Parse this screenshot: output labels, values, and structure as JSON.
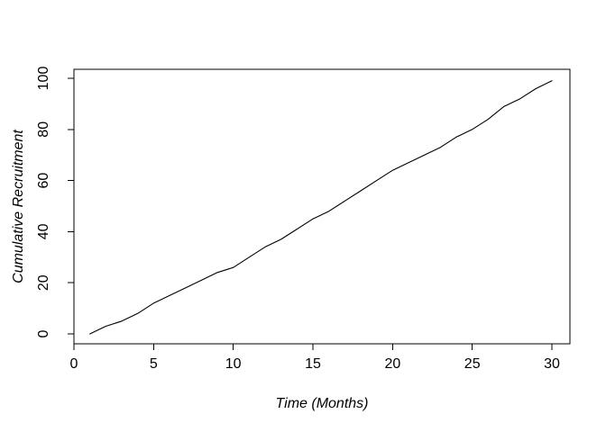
{
  "window": {
    "background": "#ffffff"
  },
  "chart_data": {
    "type": "line",
    "title": "",
    "xlabel": "Time (Months)",
    "ylabel": "Cumulative Recruitment",
    "x": [
      1,
      2,
      3,
      4,
      5,
      6,
      7,
      8,
      9,
      10,
      11,
      12,
      13,
      14,
      15,
      16,
      17,
      18,
      19,
      20,
      21,
      22,
      23,
      24,
      25,
      26,
      27,
      28,
      29,
      30
    ],
    "y": [
      0,
      3,
      5,
      8,
      12,
      15,
      18,
      21,
      24,
      26,
      30,
      34,
      37,
      41,
      45,
      48,
      52,
      56,
      60,
      64,
      67,
      70,
      73,
      77,
      80,
      84,
      89,
      92,
      96,
      99
    ],
    "xticks": [
      0,
      5,
      10,
      15,
      20,
      25,
      30
    ],
    "yticks": [
      0,
      20,
      40,
      60,
      80,
      100
    ],
    "xlim": [
      0,
      31.13
    ],
    "ylim": [
      -3.87,
      103.52
    ],
    "grid": false,
    "legend": "none",
    "line_color": "#000000",
    "axis_color": "#000000",
    "text_color": "#000000",
    "label_style": "italic"
  }
}
